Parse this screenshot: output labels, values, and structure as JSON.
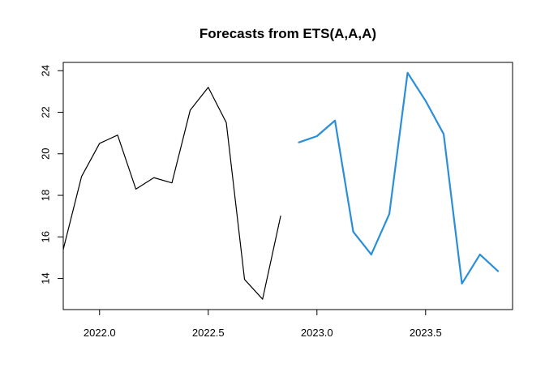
{
  "chart_data": {
    "type": "line",
    "title": "Forecasts from ETS(A,A,A)",
    "xlabel": "",
    "ylabel": "",
    "xlim": [
      2021.833,
      2023.9
    ],
    "ylim": [
      12.5,
      24.4
    ],
    "xticks": [
      2022.0,
      2022.5,
      2023.0,
      2023.5
    ],
    "xtick_labels": [
      "2022.0",
      "2022.5",
      "2023.0",
      "2023.5"
    ],
    "yticks": [
      14,
      16,
      18,
      20,
      22,
      24
    ],
    "ytick_labels": [
      "14",
      "16",
      "18",
      "20",
      "22",
      "24"
    ],
    "grid": false,
    "series": [
      {
        "color": "#000000",
        "x": [
          2021.833,
          2021.917,
          2022.0,
          2022.083,
          2022.167,
          2022.25,
          2022.333,
          2022.417,
          2022.5,
          2022.583,
          2022.667,
          2022.75,
          2022.833
        ],
        "values": [
          15.4,
          18.9,
          20.5,
          20.9,
          18.3,
          18.85,
          18.6,
          22.1,
          23.2,
          21.5,
          13.95,
          13.0,
          17.0
        ]
      },
      {
        "color": "#2a8fd8",
        "x": [
          2022.917,
          2023.0,
          2023.083,
          2023.167,
          2023.25,
          2023.333,
          2023.417,
          2023.5,
          2023.583,
          2023.667,
          2023.75,
          2023.833
        ],
        "values": [
          20.55,
          20.85,
          21.6,
          16.25,
          15.15,
          17.1,
          23.9,
          22.55,
          20.95,
          13.75,
          15.15,
          14.35
        ]
      }
    ]
  }
}
